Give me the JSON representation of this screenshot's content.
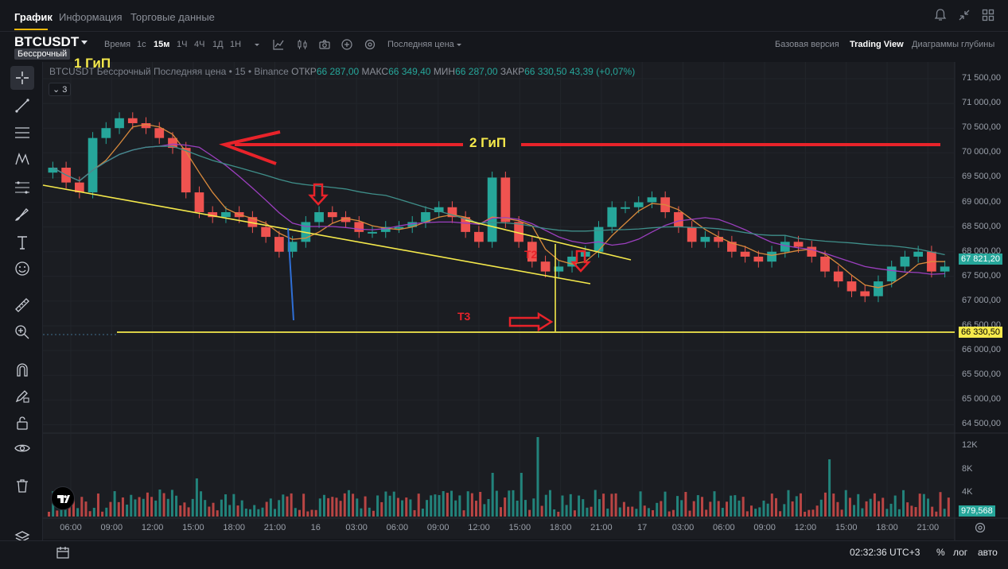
{
  "top_tabs": [
    "График",
    "Информация",
    "Торговые данные"
  ],
  "toolbar": {
    "symbol": "BTCUSDT",
    "perpetual_tag": "Бессрочный",
    "time_label": "Время",
    "intervals": [
      "1с",
      "15м",
      "1Ч",
      "4Ч",
      "1Д",
      "1Н"
    ],
    "selected_interval": "15м",
    "price_type": "Последняя цена",
    "views": [
      "Базовая версия",
      "Trading View",
      "Диаграммы глубины"
    ],
    "selected_view": "Trading View"
  },
  "legend": {
    "title": "BTCUSDT Бессрочный Последняя цена • 15 • Binance",
    "open_label": "ОТКР",
    "open": "66 287,00",
    "high_label": "МАКС",
    "high": "66 349,40",
    "low_label": "МИН",
    "low": "66 287,00",
    "close_label": "ЗАКР",
    "close": "66 330,50",
    "change": "43,39 (+0,07%)",
    "indicators_count": "3"
  },
  "annotations": {
    "hip1": "1 ГиП",
    "hip2": "2 ГиП",
    "t2": "T2",
    "t3": "T3"
  },
  "price_scale": {
    "ticks": [
      "71 500,00",
      "71 000,00",
      "70 500,00",
      "70 000,00",
      "69 500,00",
      "69 000,00",
      "68 500,00",
      "68 000,00",
      "67 500,00",
      "67 000,00",
      "66 500,00",
      "66 000,00",
      "65 500,00",
      "65 000,00",
      "64 500,00"
    ],
    "current_price": "67 821,20",
    "last_close": "66 330,50",
    "volume_ticks": [
      "12K",
      "8K",
      "4K"
    ],
    "current_volume": "979,568"
  },
  "time_scale": [
    "06:00",
    "09:00",
    "12:00",
    "15:00",
    "18:00",
    "21:00",
    "16",
    "03:00",
    "06:00",
    "09:00",
    "12:00",
    "15:00",
    "18:00",
    "21:00",
    "17",
    "03:00",
    "06:00",
    "09:00",
    "12:00",
    "15:00",
    "18:00",
    "21:00"
  ],
  "bottom": {
    "clock": "02:32:36 UTC+3",
    "percent": "%",
    "log": "лог",
    "auto": "авто"
  },
  "colors": {
    "up": "#26a69a",
    "down": "#ef5350",
    "annotation_red": "#e8232a",
    "annotation_yellow": "#f5e94b",
    "ma_purple": "#9c3fbf",
    "ma_teal": "#3f8f8a",
    "ma_orange": "#d98a3c"
  },
  "chart_data": {
    "type": "candlestick",
    "price_range": [
      64500,
      71500
    ],
    "series": [
      {
        "name": "close",
        "values": [
          69700,
          69400,
          69200,
          70300,
          70500,
          70700,
          70600,
          70500,
          70300,
          70100,
          69200,
          68800,
          68700,
          68800,
          68700,
          68500,
          68300,
          68000,
          68200,
          68600,
          68800,
          68700,
          68600,
          68400,
          68400,
          68500,
          68500,
          68600,
          68800,
          68900,
          68700,
          68400,
          68200,
          69500,
          68600,
          68200,
          67800,
          67600,
          67700,
          67900,
          68000,
          68500,
          68900,
          68900,
          69000,
          69100,
          68800,
          68500,
          68200,
          68300,
          68200,
          68000,
          67900,
          67800,
          68000,
          68200,
          68100,
          67900,
          67600,
          67400,
          67200,
          67100,
          67400,
          67700,
          67900,
          68000,
          67600,
          67700
        ]
      }
    ]
  }
}
